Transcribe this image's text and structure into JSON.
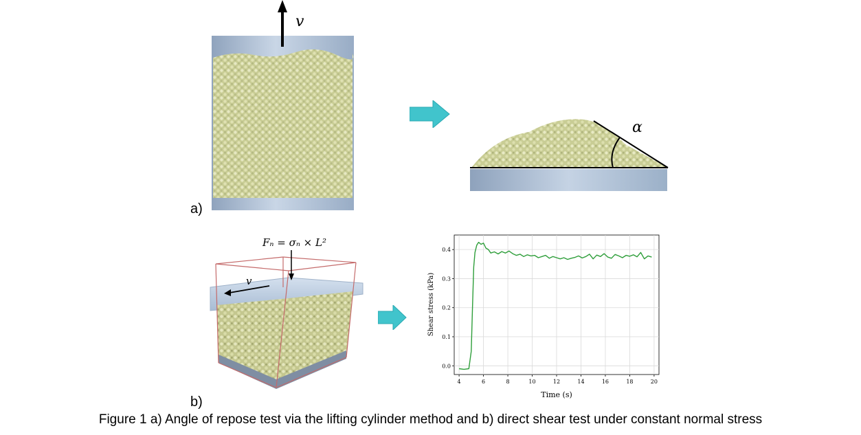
{
  "figure": {
    "label_a": "a)",
    "label_b": "b)",
    "caption": "Figure 1 a) Angle of repose test via the lifting cylinder method and b) direct shear test under constant normal stress",
    "velocity_symbol": "v",
    "angle_symbol": "α",
    "normal_force_formula": "Fₙ = σₙ × L²",
    "colors": {
      "particles": "#d6d8a6",
      "cylinder": "#b7c7dc",
      "arrow": "#41c4cc",
      "box_edge": "#c46a6a",
      "curve": "#2e9e3a"
    }
  },
  "chart_data": {
    "type": "line",
    "xlabel": "Time (s)",
    "ylabel": "Shear stress (kPa)",
    "xlim": [
      3.6,
      20.4
    ],
    "ylim": [
      -0.03,
      0.45
    ],
    "xticks": [
      4,
      6,
      8,
      10,
      12,
      14,
      16,
      18,
      20
    ],
    "yticks": [
      0.0,
      0.1,
      0.2,
      0.3,
      0.4
    ],
    "grid": true,
    "series": [
      {
        "x": [
          4.0,
          4.4,
          4.8,
          5.0,
          5.1,
          5.2,
          5.3,
          5.45,
          5.6,
          5.8,
          6.0,
          6.2,
          6.4,
          6.6,
          6.9,
          7.2,
          7.5,
          7.8,
          8.1,
          8.4,
          8.7,
          9.0,
          9.3,
          9.6,
          9.9,
          10.2,
          10.5,
          10.8,
          11.1,
          11.4,
          11.7,
          12.0,
          12.3,
          12.6,
          12.9,
          13.2,
          13.5,
          13.8,
          14.1,
          14.4,
          14.7,
          15.0,
          15.3,
          15.6,
          15.9,
          16.2,
          16.5,
          16.8,
          17.1,
          17.4,
          17.7,
          18.0,
          18.3,
          18.6,
          18.9,
          19.2,
          19.5,
          19.8
        ],
        "y": [
          -0.01,
          -0.012,
          -0.01,
          0.05,
          0.2,
          0.34,
          0.39,
          0.415,
          0.425,
          0.418,
          0.422,
          0.405,
          0.4,
          0.388,
          0.392,
          0.385,
          0.393,
          0.388,
          0.395,
          0.386,
          0.38,
          0.384,
          0.376,
          0.382,
          0.378,
          0.38,
          0.372,
          0.376,
          0.38,
          0.37,
          0.376,
          0.372,
          0.368,
          0.372,
          0.366,
          0.37,
          0.373,
          0.378,
          0.371,
          0.376,
          0.384,
          0.368,
          0.381,
          0.376,
          0.386,
          0.374,
          0.37,
          0.383,
          0.378,
          0.372,
          0.38,
          0.377,
          0.382,
          0.375,
          0.39,
          0.368,
          0.378,
          0.374
        ]
      }
    ]
  }
}
